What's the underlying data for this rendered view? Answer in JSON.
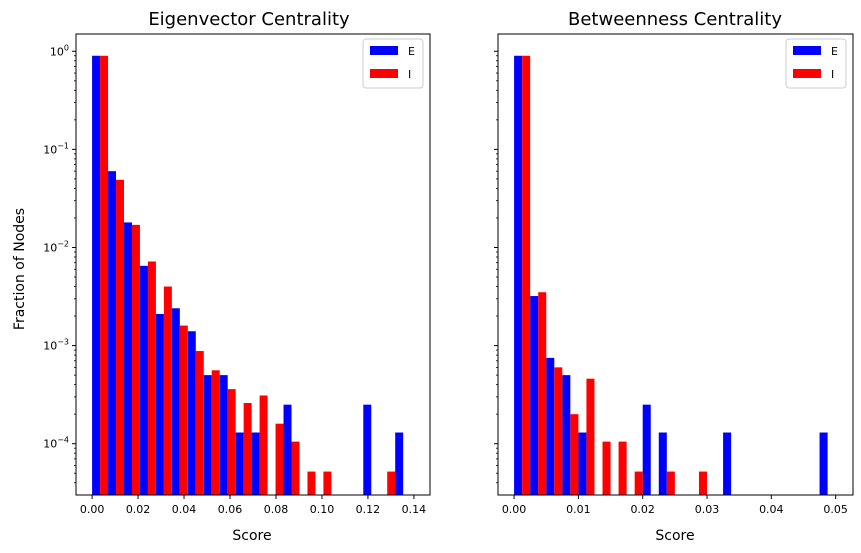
{
  "colors": {
    "E": "#0000ff",
    "I": "#ff0000"
  },
  "chart_data": [
    {
      "type": "bar",
      "title": "Eigenvector Centrality",
      "xlabel": "Score",
      "ylabel": "Fraction of Nodes",
      "yscale": "log",
      "xlim": [
        -0.007,
        0.147
      ],
      "ylim": [
        3e-05,
        1.5
      ],
      "xticks": [
        0.0,
        0.02,
        0.04,
        0.06,
        0.08,
        0.1,
        0.12,
        0.14
      ],
      "xtick_labels": [
        "0.00",
        "0.02",
        "0.04",
        "0.06",
        "0.08",
        "0.10",
        "0.12",
        "0.14"
      ],
      "bin_width": 0.00694,
      "bins": [
        0.0,
        0.00694,
        0.01388,
        0.02082,
        0.02776,
        0.0347,
        0.04164,
        0.04858,
        0.05552,
        0.06246,
        0.0694,
        0.07634,
        0.08328,
        0.09022,
        0.09716,
        0.1041,
        0.11104,
        0.11798,
        0.12492,
        0.13186
      ],
      "legend_position": "upper right",
      "series": [
        {
          "name": "E",
          "values": [
            0.9,
            0.06,
            0.018,
            0.0065,
            0.0021,
            0.0024,
            0.0014,
            0.0005,
            0.0005,
            0.00013,
            0.00013,
            0,
            0.00025,
            0,
            0,
            0,
            0,
            0.00025,
            0,
            0.00013
          ]
        },
        {
          "name": "I",
          "values": [
            0.9,
            0.049,
            0.017,
            0.0072,
            0.004,
            0.0016,
            0.00088,
            0.00056,
            0.00036,
            0.00026,
            0.00031,
            0.00016,
            0.000105,
            5.2e-05,
            5.2e-05,
            0,
            0,
            0,
            5.2e-05,
            0
          ]
        }
      ]
    },
    {
      "type": "bar",
      "title": "Betweenness Centrality",
      "xlabel": "Score",
      "ylabel": "",
      "yscale": "log",
      "xlim": [
        -0.0025,
        0.0527
      ],
      "ylim": [
        3e-05,
        1.5
      ],
      "xticks": [
        0.0,
        0.01,
        0.02,
        0.03,
        0.04,
        0.05
      ],
      "xtick_labels": [
        "0.00",
        "0.01",
        "0.02",
        "0.03",
        "0.04",
        "0.05"
      ],
      "bin_width": 0.0025,
      "bins": [
        0.0,
        0.0025,
        0.005,
        0.0075,
        0.01,
        0.0125,
        0.015,
        0.0175,
        0.02,
        0.0225,
        0.025,
        0.0275,
        0.03,
        0.0325,
        0.035,
        0.0375,
        0.04,
        0.0425,
        0.045,
        0.0475
      ],
      "legend_position": "upper right",
      "series": [
        {
          "name": "E",
          "values": [
            0.9,
            0.0032,
            0.00075,
            0.0005,
            0.00013,
            0,
            0,
            0,
            0.00025,
            0.00013,
            0,
            0,
            0,
            0.00013,
            0,
            0,
            0,
            0,
            0,
            0.00013
          ]
        },
        {
          "name": "I",
          "values": [
            0.9,
            0.0035,
            0.0006,
            0.0002,
            0.00046,
            0.000105,
            0.000105,
            5.2e-05,
            0,
            5.2e-05,
            0,
            5.2e-05,
            0,
            0,
            0,
            0,
            0,
            0,
            0,
            0
          ]
        }
      ]
    }
  ]
}
